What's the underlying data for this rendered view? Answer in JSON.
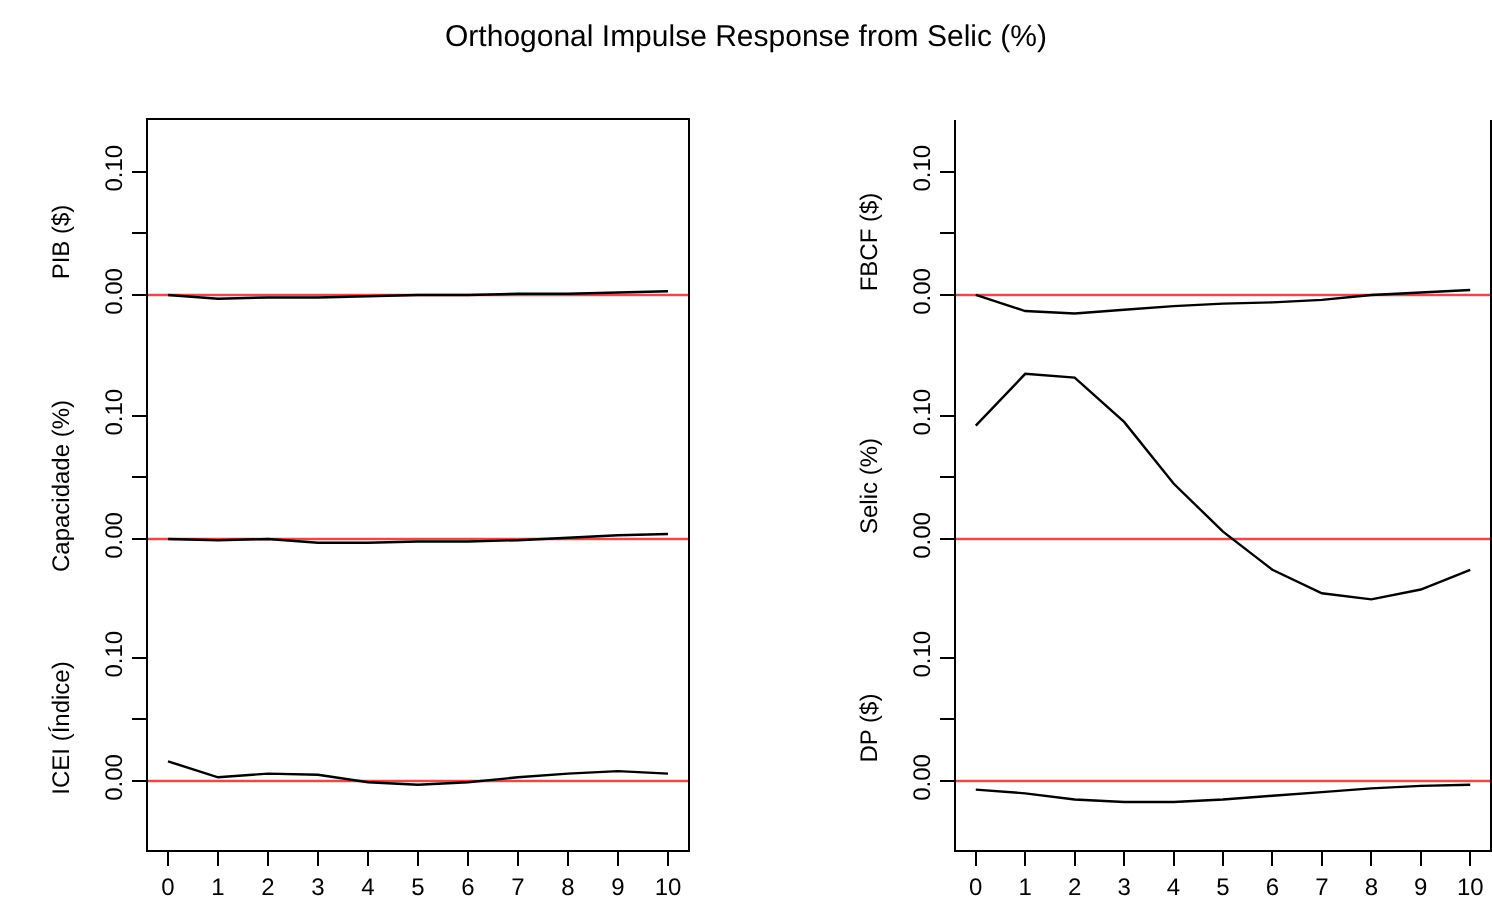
{
  "chart_data": [
    {
      "type": "line",
      "title": "Orthogonal Impulse Response from Selic (%)",
      "ylabel": "PIB ($)",
      "x": [
        0,
        1,
        2,
        3,
        4,
        5,
        6,
        7,
        8,
        9,
        10
      ],
      "xlim": [
        -0.4,
        10.4
      ],
      "ylim": [
        -0.056,
        0.142
      ],
      "yticks": [
        {
          "value": 0,
          "label": "0.00"
        },
        {
          "value": 0.05,
          "label": null
        },
        {
          "value": 0.1,
          "label": "0.10"
        }
      ],
      "tick_labels": "y",
      "series": [
        {
          "color": "#000000",
          "values": [
            0,
            -0.003,
            -0.002,
            -0.002,
            -0.001,
            0,
            0,
            0.001,
            0.001,
            0.002,
            0.003
          ]
        }
      ],
      "ref_lines": [
        {
          "axis": "y",
          "value": 0,
          "color": "#e64a4a"
        }
      ]
    },
    {
      "type": "line",
      "ylabel": "FBCF ($)",
      "x": [
        0,
        1,
        2,
        3,
        4,
        5,
        6,
        7,
        8,
        9,
        10
      ],
      "xlim": [
        -0.4,
        10.4
      ],
      "ylim": [
        -0.056,
        0.142
      ],
      "yticks": [
        {
          "value": 0,
          "label": "0.00"
        },
        {
          "value": 0.05,
          "label": null
        },
        {
          "value": 0.1,
          "label": "0.10"
        }
      ],
      "tick_labels": "y",
      "series": [
        {
          "color": "#000000",
          "values": [
            0,
            -0.013,
            -0.015,
            -0.012,
            -0.009,
            -0.007,
            -0.006,
            -0.004,
            0,
            0.002,
            0.004
          ]
        }
      ],
      "ref_lines": [
        {
          "axis": "y",
          "value": 0,
          "color": "#e64a4a"
        }
      ]
    },
    {
      "type": "line",
      "ylabel": "Capacidade (%)",
      "x": [
        0,
        1,
        2,
        3,
        4,
        5,
        6,
        7,
        8,
        9,
        10
      ],
      "xlim": [
        -0.4,
        10.4
      ],
      "ylim": [
        -0.056,
        0.142
      ],
      "yticks": [
        {
          "value": 0,
          "label": "0.00"
        },
        {
          "value": 0.05,
          "label": null
        },
        {
          "value": 0.1,
          "label": "0.10"
        }
      ],
      "tick_labels": "y",
      "series": [
        {
          "color": "#000000",
          "values": [
            0,
            -0.001,
            0,
            -0.003,
            -0.003,
            -0.002,
            -0.002,
            -0.001,
            0.001,
            0.003,
            0.004
          ]
        }
      ],
      "ref_lines": [
        {
          "axis": "y",
          "value": 0,
          "color": "#e64a4a"
        }
      ]
    },
    {
      "type": "line",
      "ylabel": "Selic (%)",
      "x": [
        0,
        1,
        2,
        3,
        4,
        5,
        6,
        7,
        8,
        9,
        10
      ],
      "xlim": [
        -0.4,
        10.4
      ],
      "ylim": [
        -0.056,
        0.142
      ],
      "yticks": [
        {
          "value": 0,
          "label": "0.00"
        },
        {
          "value": 0.05,
          "label": null
        },
        {
          "value": 0.1,
          "label": "0.10"
        }
      ],
      "tick_labels": "y",
      "series": [
        {
          "color": "#000000",
          "values": [
            0.092,
            0.134,
            0.131,
            0.095,
            0.045,
            0.006,
            -0.025,
            -0.044,
            -0.049,
            -0.041,
            -0.025
          ]
        }
      ],
      "ref_lines": [
        {
          "axis": "y",
          "value": 0,
          "color": "#e64a4a"
        }
      ]
    },
    {
      "type": "line",
      "ylabel": "ICEI (Índice)",
      "x": [
        0,
        1,
        2,
        3,
        4,
        5,
        6,
        7,
        8,
        9,
        10
      ],
      "xlim": [
        -0.4,
        10.4
      ],
      "xticks": [
        0,
        1,
        2,
        3,
        4,
        5,
        6,
        7,
        8,
        9,
        10
      ],
      "ylim": [
        -0.056,
        0.142
      ],
      "yticks": [
        {
          "value": 0,
          "label": "0.00"
        },
        {
          "value": 0.05,
          "label": null
        },
        {
          "value": 0.1,
          "label": "0.10"
        }
      ],
      "series": [
        {
          "color": "#000000",
          "values": [
            0.016,
            0.003,
            0.006,
            0.005,
            -0.001,
            -0.003,
            -0.001,
            0.003,
            0.006,
            0.008,
            0.006
          ]
        }
      ],
      "ref_lines": [
        {
          "axis": "y",
          "value": 0,
          "color": "#e64a4a"
        }
      ]
    },
    {
      "type": "line",
      "ylabel": "DP ($)",
      "x": [
        0,
        1,
        2,
        3,
        4,
        5,
        6,
        7,
        8,
        9,
        10
      ],
      "xlim": [
        -0.4,
        10.4
      ],
      "xticks": [
        0,
        1,
        2,
        3,
        4,
        5,
        6,
        7,
        8,
        9,
        10
      ],
      "ylim": [
        -0.056,
        0.142
      ],
      "yticks": [
        {
          "value": 0,
          "label": "0.00"
        },
        {
          "value": 0.05,
          "label": null
        },
        {
          "value": 0.1,
          "label": "0.10"
        }
      ],
      "series": [
        {
          "color": "#000000",
          "values": [
            -0.007,
            -0.01,
            -0.015,
            -0.017,
            -0.017,
            -0.015,
            -0.012,
            -0.009,
            -0.006,
            -0.004,
            -0.003
          ]
        }
      ],
      "ref_lines": [
        {
          "axis": "y",
          "value": 0,
          "color": "#e64a4a"
        }
      ]
    }
  ]
}
